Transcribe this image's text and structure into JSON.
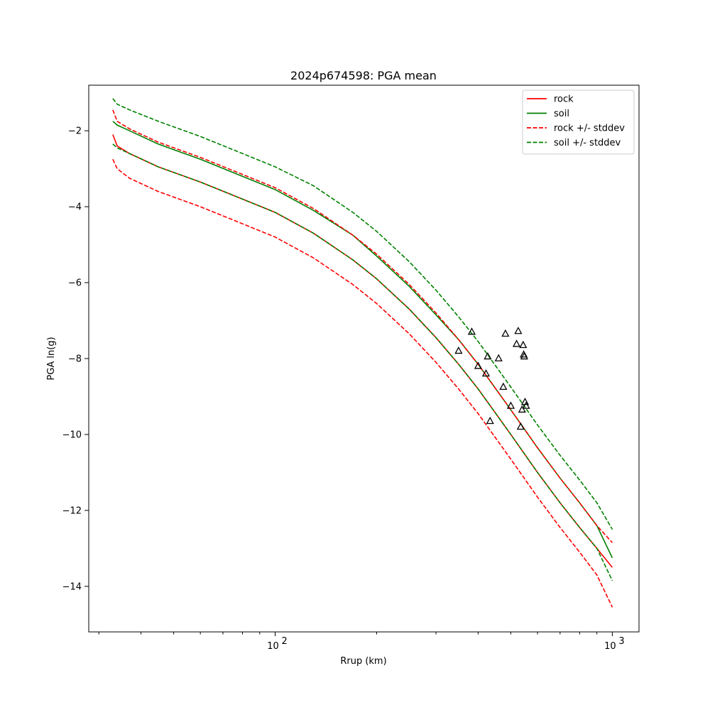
{
  "chart_data": {
    "type": "line",
    "title": "2024p674598: PGA mean",
    "xlabel": "Rrup (km)",
    "ylabel": "PGA ln(g)",
    "xscale": "log",
    "xlim": [
      28,
      1200
    ],
    "ylim": [
      -15.2,
      -0.8
    ],
    "grid": false,
    "legend_position": "top-right",
    "x_ticks": [
      {
        "value": 100,
        "base": "10",
        "exp": "2"
      },
      {
        "value": 1000,
        "base": "10",
        "exp": "3"
      }
    ],
    "y_ticks": [
      {
        "value": -2,
        "label": "−2"
      },
      {
        "value": -4,
        "label": "−4"
      },
      {
        "value": -6,
        "label": "−6"
      },
      {
        "value": -8,
        "label": "−8"
      },
      {
        "value": -10,
        "label": "−10"
      },
      {
        "value": -12,
        "label": "−12"
      },
      {
        "value": -14,
        "label": "−14"
      }
    ],
    "series": [
      {
        "name": "rock",
        "color": "#ff0000",
        "style": "solid",
        "x": [
          33,
          34,
          37,
          45,
          60,
          80,
          100,
          130,
          170,
          200,
          250,
          300,
          350,
          400,
          500,
          600,
          700,
          800,
          900,
          1000
        ],
        "y": [
          -2.1,
          -2.4,
          -2.6,
          -2.95,
          -3.35,
          -3.8,
          -4.15,
          -4.7,
          -5.4,
          -5.9,
          -6.7,
          -7.45,
          -8.15,
          -8.8,
          -10.0,
          -11.0,
          -11.8,
          -12.45,
          -13.0,
          -13.5
        ]
      },
      {
        "name": "soil",
        "color": "#008000",
        "style": "solid",
        "x": [
          33,
          34,
          37,
          45,
          60,
          80,
          100,
          130,
          170,
          200,
          250,
          300,
          350,
          400,
          500,
          600,
          700,
          800,
          900,
          1000
        ],
        "y": [
          -1.75,
          -1.85,
          -2.0,
          -2.35,
          -2.75,
          -3.2,
          -3.55,
          -4.1,
          -4.75,
          -5.3,
          -6.1,
          -6.85,
          -7.5,
          -8.15,
          -9.35,
          -10.35,
          -11.15,
          -11.8,
          -12.4,
          -13.25
        ]
      },
      {
        "name": "rock +/- stddev",
        "color": "#ff0000",
        "style": "dashed",
        "x": [
          33,
          34,
          37,
          45,
          60,
          80,
          100,
          130,
          170,
          200,
          250,
          300,
          350,
          400,
          500,
          600,
          700,
          800,
          900,
          1000
        ],
        "y": [
          -1.45,
          -1.75,
          -1.95,
          -2.3,
          -2.7,
          -3.15,
          -3.5,
          -4.05,
          -4.75,
          -5.25,
          -6.05,
          -6.8,
          -7.5,
          -8.15,
          -9.35,
          -10.35,
          -11.15,
          -11.8,
          -12.4,
          -12.85
        ]
      },
      {
        "name": "rock +/- stddev",
        "color": "#ff0000",
        "style": "dashed",
        "x": [
          33,
          34,
          37,
          45,
          60,
          80,
          100,
          130,
          170,
          200,
          250,
          300,
          350,
          400,
          500,
          600,
          700,
          800,
          900,
          1000
        ],
        "y": [
          -2.75,
          -3.0,
          -3.25,
          -3.6,
          -4.0,
          -4.45,
          -4.8,
          -5.35,
          -6.05,
          -6.55,
          -7.35,
          -8.1,
          -8.8,
          -9.45,
          -10.65,
          -11.65,
          -12.45,
          -13.1,
          -13.7,
          -14.55
        ]
      },
      {
        "name": "soil +/- stddev",
        "color": "#008000",
        "style": "dashed",
        "x": [
          33,
          34,
          37,
          45,
          60,
          80,
          100,
          130,
          170,
          200,
          250,
          300,
          350,
          400,
          500,
          600,
          700,
          800,
          900,
          1000
        ],
        "y": [
          -1.15,
          -1.3,
          -1.45,
          -1.75,
          -2.15,
          -2.6,
          -2.95,
          -3.45,
          -4.15,
          -4.65,
          -5.45,
          -6.2,
          -6.9,
          -7.55,
          -8.75,
          -9.75,
          -10.55,
          -11.2,
          -11.8,
          -12.5
        ]
      },
      {
        "name": "soil +/- stddev",
        "color": "#008000",
        "style": "dashed",
        "x": [
          33,
          34,
          37,
          45,
          60,
          80,
          100,
          130,
          170,
          200,
          250,
          300,
          350,
          400,
          500,
          600,
          700,
          800,
          900,
          1000
        ],
        "y": [
          -2.35,
          -2.45,
          -2.6,
          -2.95,
          -3.35,
          -3.8,
          -4.15,
          -4.7,
          -5.4,
          -5.9,
          -6.7,
          -7.45,
          -8.15,
          -8.8,
          -10.0,
          -11.0,
          -11.8,
          -12.45,
          -13.0,
          -13.85
        ]
      }
    ],
    "observations": {
      "marker": "triangle-open",
      "color": "#000000",
      "x": [
        350,
        383,
        400,
        422,
        427,
        434,
        460,
        475,
        482,
        500,
        520,
        526,
        535,
        540,
        544,
        546,
        548,
        551,
        555
      ],
      "y": [
        -7.8,
        -7.3,
        -8.2,
        -8.4,
        -7.95,
        -9.65,
        -8.0,
        -8.75,
        -7.35,
        -9.25,
        -7.62,
        -7.28,
        -9.8,
        -9.35,
        -7.65,
        -7.9,
        -7.95,
        -9.15,
        -9.25
      ]
    }
  }
}
